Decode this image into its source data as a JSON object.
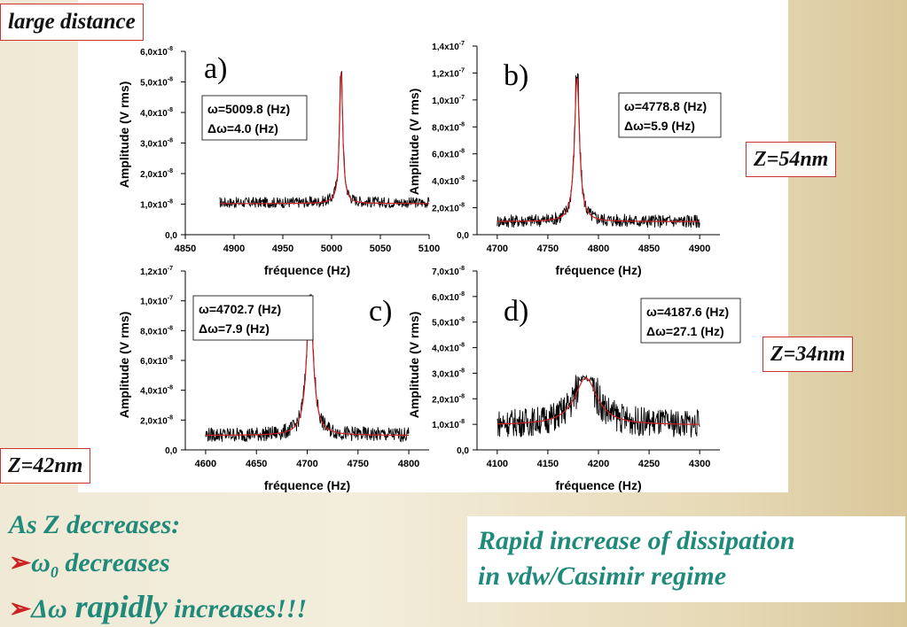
{
  "labels": {
    "large_distance": "large distance",
    "z54": "Z=54nm",
    "z34": "Z=34nm",
    "z42": "Z=42nm"
  },
  "notes": {
    "left_title": "As Z decreases:",
    "bullet1_symbol": "ω",
    "bullet1_sub": "0",
    "bullet1_text": " decreases",
    "bullet2_symbol": "Δω",
    "bullet2_emph": " rapidly",
    "bullet2_text": " increases!!!",
    "right_line1": "Rapid increase of dissipation",
    "right_line2": "in vdw/Casimir regime"
  },
  "colors": {
    "trace": "#000000",
    "fit": "#cc2222",
    "accent_text": "#1f8a7a",
    "tag_border": "#cc3333"
  },
  "chart_data": [
    {
      "type": "line",
      "panel_label": "a)",
      "xlabel": "fréquence (Hz)",
      "ylabel": "Amplitude (V rms)",
      "xlim": [
        4850,
        5100
      ],
      "xticks": [
        4850,
        4900,
        4950,
        5000,
        5050,
        5100
      ],
      "ylim": [
        0,
        6.0
      ],
      "yticks": [
        0,
        1.0,
        2.0,
        3.0,
        4.0,
        5.0,
        6.0
      ],
      "yexp": -8,
      "ytick_labels": [
        "0,0",
        "1,0x10",
        "2,0x10",
        "3,0x10",
        "4,0x10",
        "5,0x10",
        "6,0x10"
      ],
      "annotation": [
        "ω=5009.8 (Hz)",
        "Δω=4.0 (Hz)"
      ],
      "data_xrange": [
        4885,
        5100
      ],
      "center": 5009.8,
      "width": 4.0,
      "baseline": 1.05,
      "peak": 5.5,
      "noise": 0.18,
      "series": [
        {
          "values_desc": "measured amplitude"
        },
        {
          "values_desc": "Lorentzian fit"
        }
      ]
    },
    {
      "type": "line",
      "panel_label": "b)",
      "xlabel": "fréquence (Hz)",
      "ylabel": "Amplitude (V rms)",
      "xlim": [
        4680,
        4920
      ],
      "xticks": [
        4700,
        4750,
        4800,
        4850,
        4900
      ],
      "ylim": [
        0,
        14.0
      ],
      "yticks": [
        0,
        2.0,
        4.0,
        6.0,
        8.0,
        10.0,
        12.0,
        14.0
      ],
      "yexp": -8,
      "ytick_labels": [
        "0,0",
        "2,0x10",
        "4,0x10",
        "6,0x10",
        "8,0x10",
        "1,0x10",
        "1,2x10",
        "1,4x10"
      ],
      "ytick_exps": [
        "-8",
        "-8",
        "-8",
        "-8",
        "-7",
        "-7",
        "-7"
      ],
      "annotation": [
        "ω=4778.8 (Hz)",
        "Δω=5.9 (Hz)"
      ],
      "data_xrange": [
        4700,
        4900
      ],
      "center": 4778.8,
      "width": 5.9,
      "baseline": 1.0,
      "peak": 12.0,
      "noise": 0.5
    },
    {
      "type": "line",
      "panel_label": "c)",
      "xlabel": "fréquence (Hz)",
      "ylabel": "Amplitude (V rms)",
      "xlim": [
        4580,
        4820
      ],
      "xticks": [
        4600,
        4650,
        4700,
        4750,
        4800
      ],
      "ylim": [
        0,
        12.0
      ],
      "yticks": [
        0,
        2.0,
        4.0,
        6.0,
        8.0,
        10.0,
        12.0
      ],
      "yexp": -8,
      "ytick_labels": [
        "0,0",
        "2,0x10",
        "4,0x10",
        "6,0x10",
        "8,0x10",
        "1,0x10",
        "1,2x10"
      ],
      "ytick_exps": [
        "-8",
        "-8",
        "-8",
        "-8",
        "-7",
        "-7"
      ],
      "annotation": [
        "ω=4702.7 (Hz)",
        "Δω=7.9  (Hz)"
      ],
      "data_xrange": [
        4600,
        4800
      ],
      "center": 4702.7,
      "width": 7.9,
      "baseline": 1.0,
      "peak": 10.5,
      "noise": 0.5
    },
    {
      "type": "line",
      "panel_label": "d)",
      "xlabel": "fréquence (Hz)",
      "ylabel": "Amplitude (V rms)",
      "xlim": [
        4080,
        4320
      ],
      "xticks": [
        4100,
        4150,
        4200,
        4250,
        4300
      ],
      "ylim": [
        0,
        7.0
      ],
      "yticks": [
        0,
        1.0,
        2.0,
        3.0,
        4.0,
        5.0,
        6.0,
        7.0
      ],
      "yexp": -8,
      "ytick_labels": [
        "0,0",
        "1,0x10",
        "2,0x10",
        "3,0x10",
        "4,0x10",
        "5,0x10",
        "6,0x10",
        "7,0x10"
      ],
      "annotation": [
        "ω=4187.6 (Hz)",
        "Δω=27.1 (Hz)"
      ],
      "data_xrange": [
        4100,
        4300
      ],
      "center": 4187.6,
      "width": 27.1,
      "baseline": 1.0,
      "peak": 2.9,
      "noise": 0.55
    }
  ]
}
